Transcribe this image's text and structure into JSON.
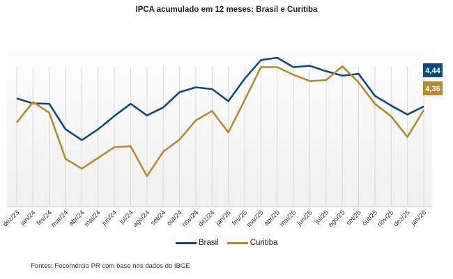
{
  "chart_data": {
    "type": "line",
    "title": "IPCA acumulado em 12 meses: Brasil e Curitiba",
    "xlabel": "",
    "ylabel": "",
    "ylim": [
      2.2,
      6.2
    ],
    "grid": "vertical",
    "legend_position": "bottom",
    "categories": [
      "dez/23",
      "jan/24",
      "fev/24",
      "mar/24",
      "abr/24",
      "mai/24",
      "jun/24",
      "jul/24",
      "ago/24",
      "set/24",
      "out/24",
      "nov/24",
      "dez/24",
      "jan/25",
      "fev/25",
      "mar/25",
      "abr/25",
      "mai/25",
      "jun/25",
      "jul/25",
      "ago/25",
      "set/25",
      "out/25",
      "nov/25",
      "dez/25",
      "jan/26"
    ],
    "series": [
      {
        "name": "Brasil",
        "color": "#0e4a80",
        "values": [
          4.62,
          4.51,
          4.5,
          3.93,
          3.69,
          3.93,
          4.23,
          4.5,
          4.24,
          4.42,
          4.76,
          4.87,
          4.83,
          4.56,
          5.06,
          5.48,
          5.53,
          5.32,
          5.35,
          5.23,
          5.13,
          5.17,
          4.68,
          4.46,
          4.26,
          4.44
        ],
        "end_label": "4,44"
      },
      {
        "name": "Curitiba",
        "color": "#b58b2e",
        "values": [
          4.08,
          4.54,
          4.3,
          3.27,
          3.05,
          3.29,
          3.53,
          3.55,
          2.88,
          3.43,
          3.7,
          4.13,
          4.34,
          3.86,
          4.58,
          5.32,
          5.32,
          5.15,
          5.01,
          5.03,
          5.34,
          4.98,
          4.5,
          4.22,
          3.76,
          4.36
        ],
        "end_label": "4,36"
      }
    ]
  },
  "legend": {
    "brasil": "Brasil",
    "curitiba": "Curitiba"
  },
  "source": "Fontes: Fecomércio PR com base nos dados do IBGE"
}
